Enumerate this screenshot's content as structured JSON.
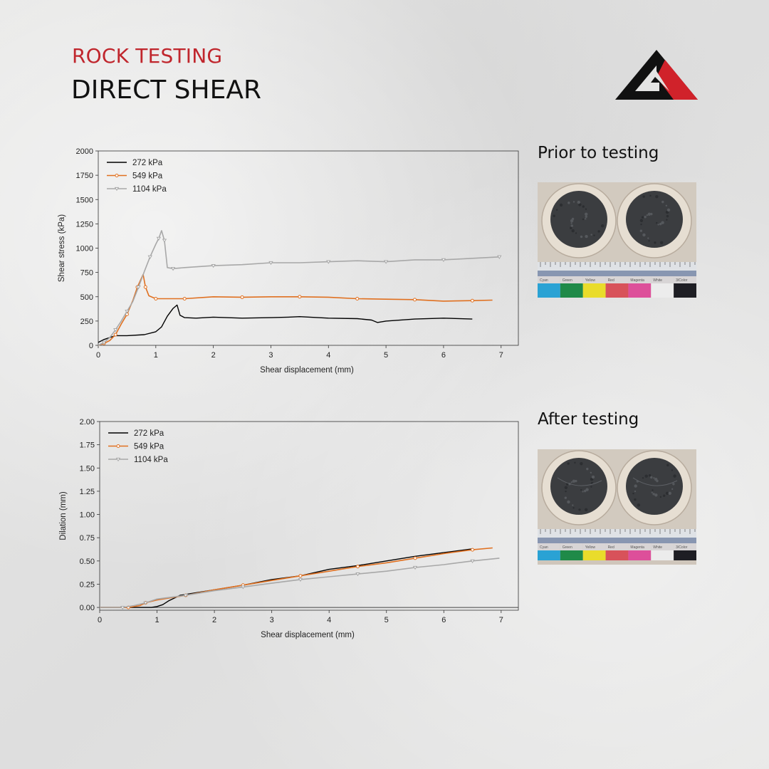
{
  "header": {
    "kicker": "ROCK TESTING",
    "title": "DIRECT SHEAR"
  },
  "photos": {
    "before_label": "Prior to testing",
    "after_label": "After testing",
    "color_patch_labels": [
      "Cyan",
      "Green",
      "Yellow",
      "Red",
      "Magenta",
      "White",
      "3/Color"
    ],
    "color_patch_colors": [
      "#2aa2d4",
      "#1f8a48",
      "#e9dc2b",
      "#d8525a",
      "#dd4f9a",
      "#ececec",
      "#1e1e24"
    ]
  },
  "theme": {
    "red": "#c0262d",
    "series_colors": [
      "#000000",
      "#e07020",
      "#a8a8a8"
    ],
    "series_markers": [
      "none",
      "circle",
      "triangle-down"
    ]
  },
  "chart_data": [
    {
      "type": "line",
      "xlabel": "Shear displacement (mm)",
      "ylabel": "Shear stress (kPa)",
      "xlim": [
        0,
        7.3
      ],
      "ylim": [
        0,
        2000
      ],
      "xticks": [
        0,
        1,
        2,
        3,
        4,
        5,
        6,
        7
      ],
      "yticks": [
        0,
        250,
        500,
        750,
        1000,
        1250,
        1500,
        1750,
        2000
      ],
      "legend": "top-left",
      "grid": false,
      "series": [
        {
          "name": "272 kPa",
          "x": [
            0,
            0.1,
            0.2,
            0.3,
            0.5,
            0.8,
            1.0,
            1.1,
            1.2,
            1.3,
            1.37,
            1.42,
            1.5,
            1.7,
            2.0,
            2.5,
            3.0,
            3.3,
            3.5,
            4.0,
            4.5,
            4.75,
            4.85,
            5.0,
            5.5,
            6.0,
            6.5
          ],
          "y": [
            30,
            60,
            80,
            100,
            100,
            110,
            140,
            190,
            300,
            380,
            415,
            310,
            285,
            280,
            290,
            280,
            285,
            290,
            295,
            280,
            275,
            260,
            235,
            250,
            270,
            280,
            270
          ]
        },
        {
          "name": "549 kPa",
          "x": [
            0,
            0.1,
            0.2,
            0.3,
            0.4,
            0.5,
            0.6,
            0.68,
            0.78,
            0.82,
            0.88,
            1.0,
            1.2,
            1.5,
            2.0,
            2.5,
            3.0,
            3.5,
            4.0,
            4.5,
            5.0,
            5.5,
            6.0,
            6.5,
            6.85
          ],
          "y": [
            0,
            20,
            50,
            110,
            220,
            320,
            460,
            600,
            730,
            600,
            510,
            480,
            480,
            480,
            500,
            495,
            500,
            500,
            495,
            480,
            475,
            470,
            455,
            460,
            465
          ]
        },
        {
          "name": "1104 kPa",
          "x": [
            0,
            0.1,
            0.2,
            0.3,
            0.4,
            0.5,
            0.6,
            0.7,
            0.8,
            0.9,
            1.0,
            1.05,
            1.1,
            1.15,
            1.2,
            1.3,
            1.5,
            2.0,
            2.5,
            3.0,
            3.5,
            4.0,
            4.5,
            5.0,
            5.5,
            6.0,
            6.5,
            6.97
          ],
          "y": [
            0,
            30,
            80,
            160,
            250,
            350,
            450,
            600,
            760,
            910,
            1040,
            1100,
            1180,
            1080,
            800,
            790,
            800,
            820,
            830,
            850,
            850,
            860,
            870,
            860,
            880,
            880,
            895,
            910
          ]
        }
      ]
    },
    {
      "type": "line",
      "xlabel": "Shear displacement (mm)",
      "ylabel": "Dilation (mm)",
      "xlim": [
        0,
        7.3
      ],
      "ylim": [
        -0.03,
        2.0
      ],
      "xticks": [
        0,
        1,
        2,
        3,
        4,
        5,
        6,
        7
      ],
      "yticks": [
        "0.00",
        "0.25",
        "0.50",
        "0.75",
        "1.00",
        "1.25",
        "1.50",
        "1.75",
        "2.00"
      ],
      "zero_line": true,
      "legend": "top-left",
      "grid": false,
      "series": [
        {
          "name": "272 kPa",
          "x": [
            0,
            0.5,
            0.9,
            1.0,
            1.1,
            1.2,
            1.4,
            1.5,
            2.0,
            2.5,
            3.0,
            3.5,
            4.0,
            4.5,
            5.0,
            5.5,
            6.0,
            6.5
          ],
          "y": [
            0,
            0,
            0,
            0.01,
            0.03,
            0.07,
            0.13,
            0.14,
            0.19,
            0.24,
            0.3,
            0.34,
            0.41,
            0.45,
            0.5,
            0.55,
            0.59,
            0.63
          ]
        },
        {
          "name": "549 kPa",
          "x": [
            0,
            0.5,
            0.7,
            0.8,
            1.0,
            1.5,
            2.0,
            2.5,
            3.0,
            3.5,
            4.0,
            4.5,
            5.0,
            5.5,
            6.0,
            6.5,
            6.85
          ],
          "y": [
            0,
            0,
            0.02,
            0.05,
            0.08,
            0.13,
            0.19,
            0.24,
            0.29,
            0.34,
            0.39,
            0.44,
            0.48,
            0.53,
            0.58,
            0.62,
            0.64
          ]
        },
        {
          "name": "1104 kPa",
          "x": [
            0,
            0.4,
            0.6,
            0.8,
            1.0,
            1.5,
            2.0,
            2.5,
            3.0,
            3.5,
            4.0,
            4.5,
            5.0,
            5.5,
            6.0,
            6.5,
            6.97
          ],
          "y": [
            0,
            0,
            0.02,
            0.05,
            0.09,
            0.13,
            0.18,
            0.22,
            0.26,
            0.3,
            0.33,
            0.36,
            0.39,
            0.43,
            0.46,
            0.5,
            0.53
          ]
        }
      ]
    }
  ]
}
